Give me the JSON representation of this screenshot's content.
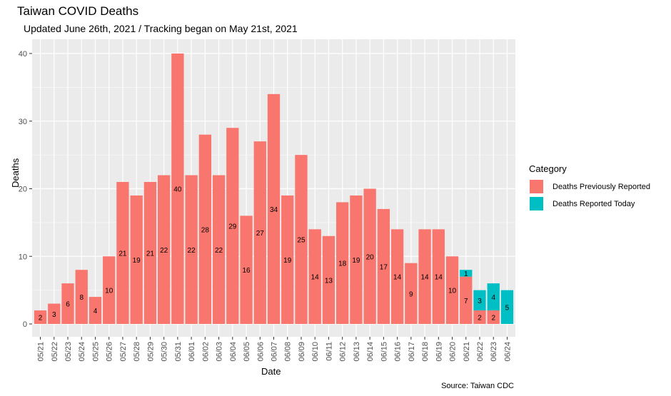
{
  "title": "Taiwan COVID Deaths",
  "subtitle": "Updated June 26th, 2021 / Tracking began on May 21st, 2021",
  "caption": "Source: Taiwan CDC",
  "colors": {
    "previous": "#F8766D",
    "today": "#00BFC4",
    "panel": "#EBEBEB",
    "grid": "#FFFFFF"
  },
  "chart_data": {
    "type": "bar",
    "stacked": true,
    "xlabel": "Date",
    "ylabel": "Deaths",
    "ylim": [
      0,
      42
    ],
    "yticks": [
      0,
      10,
      20,
      30,
      40
    ],
    "grid": true,
    "legend_position": "right",
    "legend_title": "Category",
    "categories": [
      "05/21",
      "05/22",
      "05/23",
      "05/24",
      "05/25",
      "05/26",
      "05/27",
      "05/28",
      "05/29",
      "05/30",
      "05/31",
      "06/01",
      "06/02",
      "06/03",
      "06/04",
      "06/05",
      "06/06",
      "06/07",
      "06/08",
      "06/09",
      "06/10",
      "06/11",
      "06/12",
      "06/13",
      "06/14",
      "06/15",
      "06/16",
      "06/17",
      "06/18",
      "06/19",
      "06/20",
      "06/21",
      "06/22",
      "06/23",
      "06/24"
    ],
    "series": [
      {
        "name": "Deaths Previously Reported",
        "values": [
          2,
          3,
          6,
          8,
          4,
          10,
          21,
          19,
          21,
          22,
          40,
          22,
          28,
          22,
          29,
          16,
          27,
          34,
          19,
          25,
          14,
          13,
          18,
          19,
          20,
          17,
          14,
          9,
          14,
          14,
          10,
          7,
          2,
          2,
          0
        ]
      },
      {
        "name": "Deaths Reported Today",
        "values": [
          0,
          0,
          0,
          0,
          0,
          0,
          0,
          0,
          0,
          0,
          0,
          0,
          0,
          0,
          0,
          0,
          0,
          0,
          0,
          0,
          0,
          0,
          0,
          0,
          0,
          0,
          0,
          0,
          0,
          0,
          0,
          1,
          3,
          4,
          5
        ]
      }
    ]
  }
}
